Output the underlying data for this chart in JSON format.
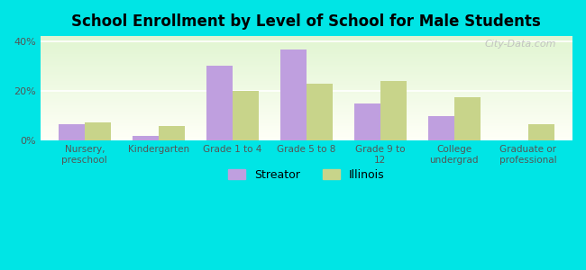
{
  "title": "School Enrollment by Level of School for Male Students",
  "categories": [
    "Nursery,\npreschool",
    "Kindergarten",
    "Grade 1 to 4",
    "Grade 5 to 8",
    "Grade 9 to\n12",
    "College\nundergrad",
    "Graduate or\nprofessional"
  ],
  "streator": [
    6.5,
    2.0,
    30.0,
    36.5,
    15.0,
    10.0,
    0.0
  ],
  "illinois": [
    7.5,
    6.0,
    20.0,
    23.0,
    24.0,
    17.5,
    6.5
  ],
  "streator_color": "#bf9fdf",
  "illinois_color": "#c8d48a",
  "background_color": "#00e5e5",
  "ylim": [
    0,
    42
  ],
  "yticks": [
    0,
    20,
    40
  ],
  "ytick_labels": [
    "0%",
    "20%",
    "40%"
  ],
  "legend_labels": [
    "Streator",
    "Illinois"
  ],
  "watermark": "City-Data.com",
  "bar_width": 0.35
}
